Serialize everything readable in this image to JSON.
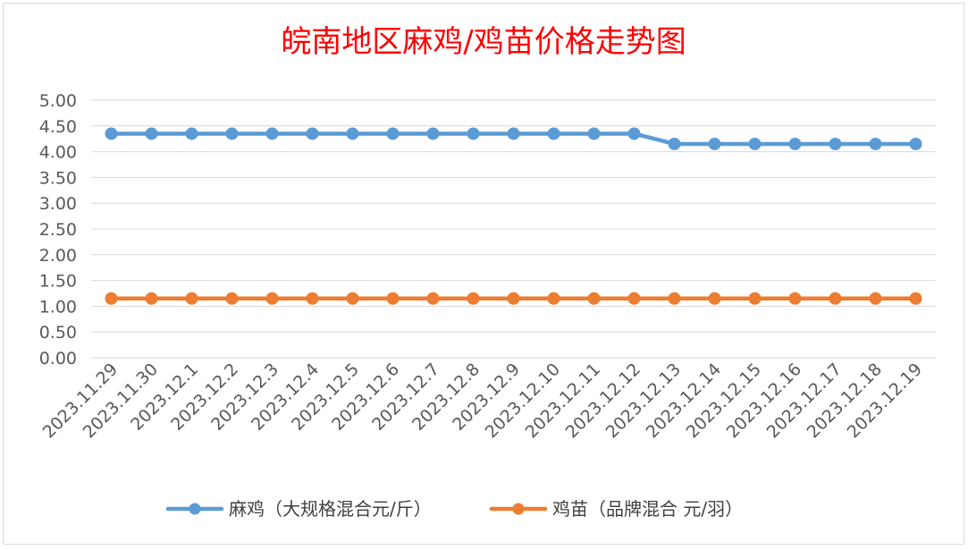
{
  "chart_data": {
    "type": "line",
    "title": "皖南地区麻鸡/鸡苗价格走势图",
    "title_color": "#ff0000",
    "categories": [
      "2023.11.29",
      "2023.11.30",
      "2023.12.1",
      "2023.12.2",
      "2023.12.3",
      "2023.12.4",
      "2023.12.5",
      "2023.12.6",
      "2023.12.7",
      "2023.12.8",
      "2023.12.9",
      "2023.12.10",
      "2023.12.11",
      "2023.12.12",
      "2023.12.13",
      "2023.12.14",
      "2023.12.15",
      "2023.12.16",
      "2023.12.17",
      "2023.12.18",
      "2023.12.19"
    ],
    "y_ticks": [
      "0.00",
      "0.50",
      "1.00",
      "1.50",
      "2.00",
      "2.50",
      "3.00",
      "3.50",
      "4.00",
      "4.50",
      "5.00"
    ],
    "ylim": [
      0,
      5
    ],
    "grid": true,
    "legend_position": "bottom",
    "series": [
      {
        "name": "麻鸡（大规格混合元/斤）",
        "color": "#5b9bd5",
        "values": [
          4.35,
          4.35,
          4.35,
          4.35,
          4.35,
          4.35,
          4.35,
          4.35,
          4.35,
          4.35,
          4.35,
          4.35,
          4.35,
          4.35,
          4.15,
          4.15,
          4.15,
          4.15,
          4.15,
          4.15,
          4.15
        ]
      },
      {
        "name": "鸡苗（品牌混合 元/羽）",
        "color": "#ed7d31",
        "values": [
          1.15,
          1.15,
          1.15,
          1.15,
          1.15,
          1.15,
          1.15,
          1.15,
          1.15,
          1.15,
          1.15,
          1.15,
          1.15,
          1.15,
          1.15,
          1.15,
          1.15,
          1.15,
          1.15,
          1.15,
          1.15
        ]
      }
    ]
  }
}
